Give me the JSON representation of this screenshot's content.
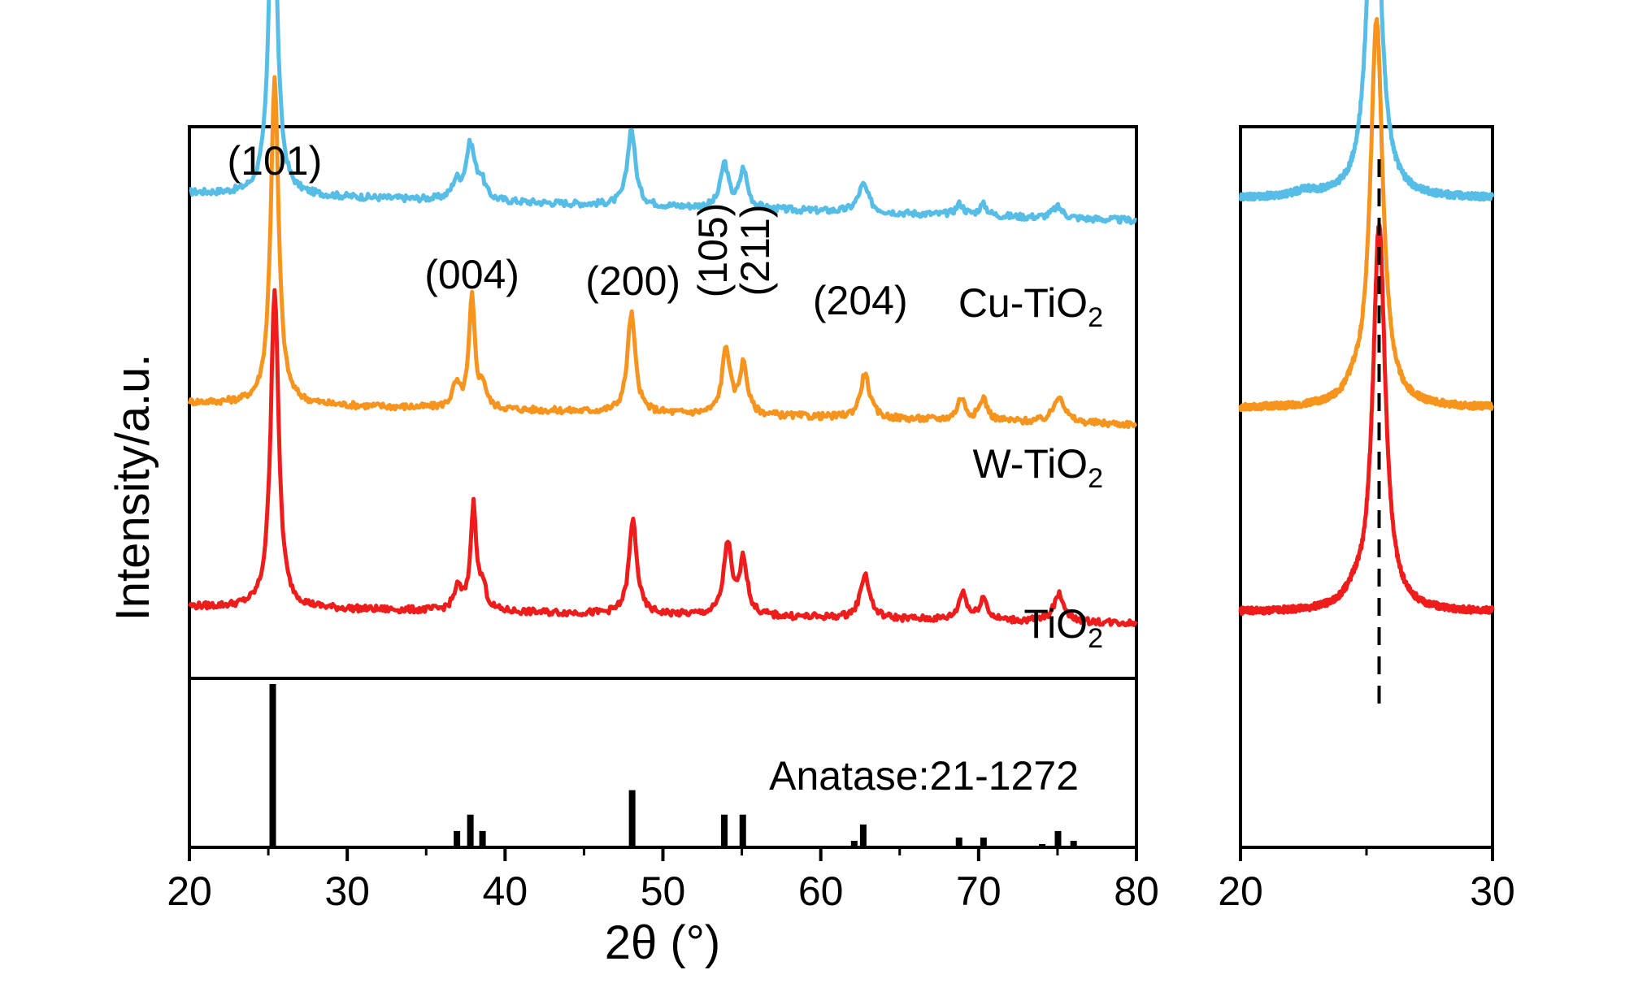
{
  "chart_data": {
    "type": "line",
    "xlabel": "2θ (°)",
    "ylabel": "Intensity/a.u.",
    "main_panel": {
      "xlim": [
        20,
        80
      ],
      "xticks": [
        "20",
        "30",
        "40",
        "50",
        "60",
        "70",
        "80"
      ],
      "series": [
        {
          "name": "Cu-TiO2",
          "label_main": "Cu-TiO",
          "label_sub": "2",
          "color": "#56bde6",
          "base": 0.88,
          "tilt": 0.05,
          "peaks": [
            [
              25.3,
              0.62,
              0.3
            ],
            [
              36.9,
              0.03,
              0.3
            ],
            [
              37.8,
              0.1,
              0.35
            ],
            [
              38.5,
              0.03,
              0.3
            ],
            [
              48.0,
              0.14,
              0.3
            ],
            [
              53.9,
              0.08,
              0.3
            ],
            [
              55.1,
              0.07,
              0.3
            ],
            [
              62.7,
              0.05,
              0.4
            ],
            [
              68.8,
              0.02,
              0.3
            ],
            [
              70.3,
              0.02,
              0.3
            ],
            [
              75.0,
              0.02,
              0.4
            ]
          ]
        },
        {
          "name": "W-TiO2",
          "label_main": "W-TiO",
          "label_sub": "2",
          "color": "#f6941d",
          "base": 0.5,
          "tilt": 0.04,
          "peaks": [
            [
              25.4,
              0.59,
              0.3
            ],
            [
              36.9,
              0.04,
              0.3
            ],
            [
              37.9,
              0.2,
              0.22
            ],
            [
              38.6,
              0.04,
              0.25
            ],
            [
              48.0,
              0.18,
              0.3
            ],
            [
              54.0,
              0.12,
              0.3
            ],
            [
              55.1,
              0.09,
              0.3
            ],
            [
              62.8,
              0.08,
              0.35
            ],
            [
              68.9,
              0.04,
              0.3
            ],
            [
              70.3,
              0.04,
              0.3
            ],
            [
              75.1,
              0.05,
              0.4
            ]
          ]
        },
        {
          "name": "TiO2",
          "label_main": "TiO",
          "label_sub": "2",
          "color": "#ef1c1c",
          "base": 0.13,
          "tilt": 0.03,
          "peaks": [
            [
              25.4,
              0.58,
              0.3
            ],
            [
              37.0,
              0.04,
              0.3
            ],
            [
              38.0,
              0.19,
              0.22
            ],
            [
              38.6,
              0.04,
              0.25
            ],
            [
              48.1,
              0.17,
              0.3
            ],
            [
              54.1,
              0.13,
              0.3
            ],
            [
              55.1,
              0.1,
              0.3
            ],
            [
              62.8,
              0.08,
              0.35
            ],
            [
              69.0,
              0.05,
              0.3
            ],
            [
              70.3,
              0.04,
              0.3
            ],
            [
              75.1,
              0.05,
              0.4
            ]
          ]
        }
      ],
      "annotations": [
        {
          "text": "(101)",
          "x": 25.3,
          "rotate": false
        },
        {
          "text": "(004)",
          "x": 37.8,
          "rotate": false
        },
        {
          "text": "(200)",
          "x": 48.0,
          "rotate": false
        },
        {
          "text": "(105)",
          "x": 53.9,
          "rotate": true
        },
        {
          "text": "(211)",
          "x": 56.0,
          "rotate": true
        },
        {
          "text": "(204)",
          "x": 62.4,
          "rotate": false
        }
      ]
    },
    "reference": {
      "label": "Anatase:21-1272",
      "lines": [
        [
          25.28,
          1.0
        ],
        [
          36.95,
          0.1
        ],
        [
          37.8,
          0.2
        ],
        [
          38.57,
          0.1
        ],
        [
          48.05,
          0.35
        ],
        [
          53.89,
          0.2
        ],
        [
          55.06,
          0.2
        ],
        [
          62.12,
          0.04
        ],
        [
          62.69,
          0.14
        ],
        [
          68.76,
          0.06
        ],
        [
          70.31,
          0.06
        ],
        [
          74.03,
          0.02
        ],
        [
          75.03,
          0.1
        ],
        [
          76.02,
          0.04
        ]
      ]
    },
    "zoom_panel": {
      "xlim": [
        20,
        30
      ],
      "xticks": [
        "20",
        "30"
      ],
      "dashed_x": 25.5,
      "series": [
        {
          "name": "Cu-TiO2",
          "color": "#56bde6",
          "base": 0.87,
          "peaks": [
            [
              25.3,
              0.7,
              0.3
            ],
            [
              22.6,
              0.01,
              0.6
            ]
          ]
        },
        {
          "name": "W-TiO2",
          "color": "#f6941d",
          "base": 0.49,
          "peaks": [
            [
              25.4,
              0.7,
              0.3
            ],
            [
              24.5,
              0.02,
              0.4
            ]
          ]
        },
        {
          "name": "TiO2",
          "color": "#ef1c1c",
          "base": 0.12,
          "peaks": [
            [
              25.5,
              0.7,
              0.3
            ],
            [
              24.5,
              0.02,
              0.4
            ]
          ]
        }
      ]
    }
  }
}
